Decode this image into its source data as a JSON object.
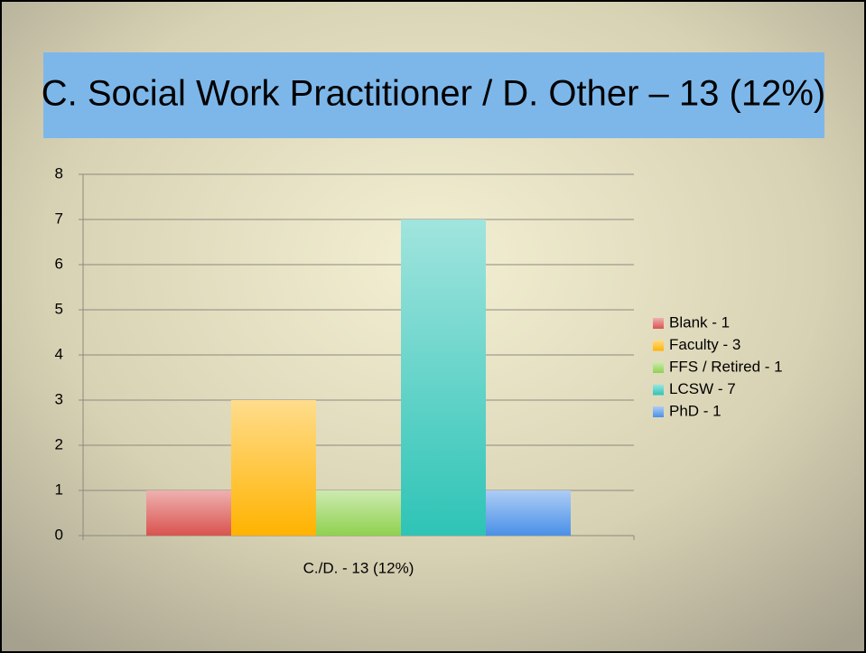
{
  "chart_data": {
    "type": "bar",
    "title": "C. Social Work Practitioner / D. Other – 13 (12%)",
    "categories": [
      "C./D. - 13 (12%)"
    ],
    "series": [
      {
        "name": "Blank - 1",
        "color": "#d9534f",
        "values": [
          1
        ]
      },
      {
        "name": "Faculty - 3",
        "color": "#ffb300",
        "values": [
          3
        ]
      },
      {
        "name": "FFS / Retired - 1",
        "color": "#8fd14f",
        "values": [
          1
        ]
      },
      {
        "name": "LCSW - 7",
        "color": "#2ec4b6",
        "values": [
          7
        ]
      },
      {
        "name": "PhD - 1",
        "color": "#4a90e8",
        "values": [
          1
        ]
      }
    ],
    "ylim": [
      0,
      8
    ],
    "yticks": [
      0,
      1,
      2,
      3,
      4,
      5,
      6,
      7,
      8
    ],
    "grid": true,
    "legend": "right"
  }
}
